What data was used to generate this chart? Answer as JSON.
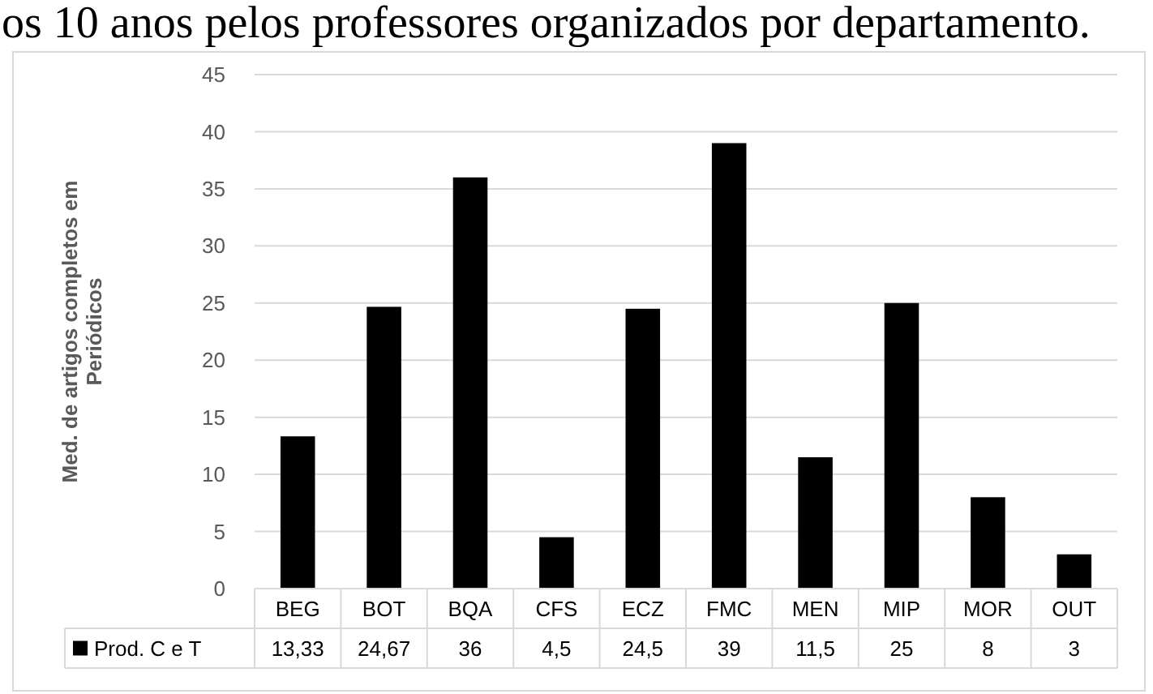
{
  "chart_data": {
    "type": "bar",
    "annotations": [
      "os 10 anos pelos professores organizados por departamento."
    ],
    "ylabel": "Med. de artigos completos em Periódicos",
    "categories": [
      "BEG",
      "BOT",
      "BQA",
      "CFS",
      "ECZ",
      "FMC",
      "MEN",
      "MIP",
      "MOR",
      "OUT"
    ],
    "series": [
      {
        "name": "Prod. C e T",
        "color": "#000000",
        "values": [
          13.33,
          24.67,
          36,
          4.5,
          24.5,
          39,
          11.5,
          25,
          8,
          3
        ],
        "value_labels": [
          "13,33",
          "24,67",
          "36",
          "4,5",
          "24,5",
          "39",
          "11,5",
          "25",
          "8",
          "3"
        ]
      }
    ],
    "ylim": [
      0,
      45
    ],
    "yticks": [
      0,
      5,
      10,
      15,
      20,
      25,
      30,
      35,
      40,
      45
    ],
    "grid": "y",
    "legend": "bottom"
  }
}
